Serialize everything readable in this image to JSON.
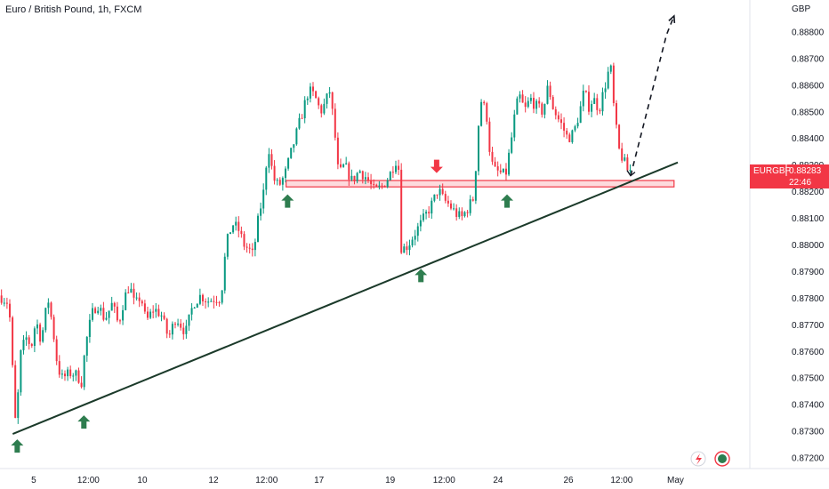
{
  "header": {
    "title": "Euro / British Pound, 1h, FXCM",
    "currency": "GBP"
  },
  "price_badge": {
    "symbol": "EURGBP",
    "price": "0.88283",
    "countdown": "22:46",
    "color": "#f23645"
  },
  "colors": {
    "up": "#089981",
    "down": "#f23645",
    "trendline": "#1b3a2a",
    "support_zone": "#f23645",
    "up_arrow": "#2e7d4f",
    "down_arrow": "#f23645"
  },
  "icons": [
    "flash-icon",
    "record-icon"
  ],
  "chart_data": {
    "type": "candlestick",
    "title": "Euro / British Pound, 1h, FXCM",
    "ylim": [
      0.8716,
      0.8892
    ],
    "y_ticks": [
      "0.88800",
      "0.88700",
      "0.88600",
      "0.88500",
      "0.88400",
      "0.88300",
      "0.88200",
      "0.88100",
      "0.88000",
      "0.87900",
      "0.87800",
      "0.87700",
      "0.87600",
      "0.87500",
      "0.87400",
      "0.87300",
      "0.87200"
    ],
    "x_ticks": [
      {
        "label": "5",
        "t": 0.045
      },
      {
        "label": "12:00",
        "t": 0.118
      },
      {
        "label": "10",
        "t": 0.19
      },
      {
        "label": "12",
        "t": 0.285
      },
      {
        "label": "12:00",
        "t": 0.356
      },
      {
        "label": "17",
        "t": 0.426
      },
      {
        "label": "19",
        "t": 0.521
      },
      {
        "label": "12:00",
        "t": 0.593
      },
      {
        "label": "24",
        "t": 0.665
      },
      {
        "label": "26",
        "t": 0.759
      },
      {
        "label": "12:00",
        "t": 0.83
      },
      {
        "label": "May",
        "t": 0.902
      }
    ],
    "price_path": [
      [
        0.0,
        0.8781
      ],
      [
        0.012,
        0.8778
      ],
      [
        0.017,
        0.8752
      ],
      [
        0.021,
        0.8731
      ],
      [
        0.028,
        0.876
      ],
      [
        0.035,
        0.8765
      ],
      [
        0.042,
        0.8762
      ],
      [
        0.048,
        0.8772
      ],
      [
        0.055,
        0.8764
      ],
      [
        0.064,
        0.878
      ],
      [
        0.07,
        0.877
      ],
      [
        0.077,
        0.8754
      ],
      [
        0.083,
        0.875
      ],
      [
        0.095,
        0.8752
      ],
      [
        0.103,
        0.8751
      ],
      [
        0.11,
        0.8748
      ],
      [
        0.113,
        0.876
      ],
      [
        0.118,
        0.8768
      ],
      [
        0.124,
        0.8775
      ],
      [
        0.13,
        0.8778
      ],
      [
        0.14,
        0.8772
      ],
      [
        0.15,
        0.8778
      ],
      [
        0.158,
        0.877
      ],
      [
        0.166,
        0.878
      ],
      [
        0.173,
        0.8785
      ],
      [
        0.18,
        0.8777
      ],
      [
        0.188,
        0.8781
      ],
      [
        0.195,
        0.8771
      ],
      [
        0.205,
        0.8776
      ],
      [
        0.215,
        0.8774
      ],
      [
        0.225,
        0.8765
      ],
      [
        0.235,
        0.8773
      ],
      [
        0.248,
        0.8767
      ],
      [
        0.258,
        0.8778
      ],
      [
        0.268,
        0.8781
      ],
      [
        0.278,
        0.8779
      ],
      [
        0.288,
        0.878
      ],
      [
        0.295,
        0.878
      ],
      [
        0.302,
        0.88
      ],
      [
        0.31,
        0.8808
      ],
      [
        0.318,
        0.8806
      ],
      [
        0.326,
        0.88
      ],
      [
        0.333,
        0.8798
      ],
      [
        0.338,
        0.8796
      ],
      [
        0.345,
        0.881
      ],
      [
        0.352,
        0.882
      ],
      [
        0.358,
        0.8838
      ],
      [
        0.365,
        0.8825
      ],
      [
        0.372,
        0.8822
      ],
      [
        0.38,
        0.8826
      ],
      [
        0.388,
        0.8834
      ],
      [
        0.396,
        0.8842
      ],
      [
        0.404,
        0.885
      ],
      [
        0.412,
        0.8858
      ],
      [
        0.42,
        0.8856
      ],
      [
        0.428,
        0.885
      ],
      [
        0.434,
        0.8853
      ],
      [
        0.44,
        0.8858
      ],
      [
        0.446,
        0.8845
      ],
      [
        0.452,
        0.8826
      ],
      [
        0.46,
        0.883
      ],
      [
        0.47,
        0.8824
      ],
      [
        0.48,
        0.8828
      ],
      [
        0.49,
        0.8825
      ],
      [
        0.5,
        0.882
      ],
      [
        0.51,
        0.8822
      ],
      [
        0.52,
        0.8826
      ],
      [
        0.528,
        0.8832
      ],
      [
        0.532,
        0.883
      ],
      [
        0.536,
        0.8798
      ],
      [
        0.545,
        0.88
      ],
      [
        0.553,
        0.8804
      ],
      [
        0.562,
        0.8808
      ],
      [
        0.57,
        0.8812
      ],
      [
        0.578,
        0.8816
      ],
      [
        0.585,
        0.8821
      ],
      [
        0.592,
        0.8817
      ],
      [
        0.6,
        0.8815
      ],
      [
        0.608,
        0.8812
      ],
      [
        0.616,
        0.881
      ],
      [
        0.625,
        0.8814
      ],
      [
        0.633,
        0.8818
      ],
      [
        0.638,
        0.8843
      ],
      [
        0.643,
        0.8855
      ],
      [
        0.65,
        0.8848
      ],
      [
        0.655,
        0.8832
      ],
      [
        0.66,
        0.8828
      ],
      [
        0.668,
        0.8827
      ],
      [
        0.675,
        0.8826
      ],
      [
        0.682,
        0.8838
      ],
      [
        0.689,
        0.8852
      ],
      [
        0.695,
        0.8856
      ],
      [
        0.7,
        0.885
      ],
      [
        0.708,
        0.8855
      ],
      [
        0.716,
        0.8852
      ],
      [
        0.725,
        0.885
      ],
      [
        0.732,
        0.886
      ],
      [
        0.738,
        0.8852
      ],
      [
        0.744,
        0.8848
      ],
      [
        0.75,
        0.8845
      ],
      [
        0.758,
        0.884
      ],
      [
        0.766,
        0.8842
      ],
      [
        0.774,
        0.885
      ],
      [
        0.78,
        0.8858
      ],
      [
        0.786,
        0.8852
      ],
      [
        0.792,
        0.8855
      ],
      [
        0.8,
        0.8851
      ],
      [
        0.808,
        0.886
      ],
      [
        0.815,
        0.8868
      ],
      [
        0.82,
        0.885
      ],
      [
        0.826,
        0.8836
      ],
      [
        0.832,
        0.8832
      ],
      [
        0.838,
        0.8828
      ],
      [
        0.842,
        0.8828
      ]
    ],
    "trendline": {
      "from": [
        0.017,
        0.8729
      ],
      "to": [
        0.905,
        0.8831
      ]
    },
    "support_zone": {
      "x_from": 0.382,
      "x_to": 0.9,
      "y_from": 0.88218,
      "y_to": 0.88242
    },
    "projection_path": [
      [
        0.842,
        0.8826
      ],
      [
        0.89,
        0.8879
      ],
      [
        0.9,
        0.8886
      ]
    ],
    "up_arrows": [
      {
        "t": 0.023,
        "price": 0.8727
      },
      {
        "t": 0.112,
        "price": 0.8736
      },
      {
        "t": 0.384,
        "price": 0.8819
      },
      {
        "t": 0.562,
        "price": 0.8791
      },
      {
        "t": 0.677,
        "price": 0.8819
      }
    ],
    "down_arrows": [
      {
        "t": 0.583,
        "price": 0.8827
      }
    ]
  }
}
